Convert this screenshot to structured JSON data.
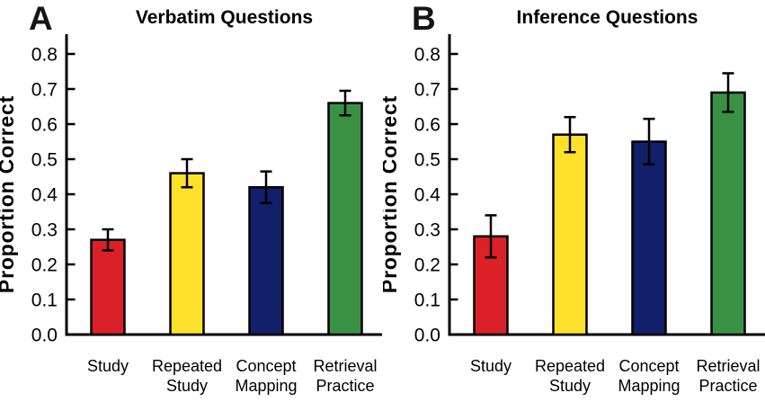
{
  "figure": {
    "background": "#ffffff",
    "text_color": "#000000"
  },
  "chart_data": [
    {
      "type": "bar",
      "panel_letter": "A",
      "title": "Verbatim Questions",
      "xlabel": "",
      "ylabel": "Proportion Correct",
      "categories": [
        "Study",
        "Repeated Study",
        "Concept Mapping",
        "Retrieval Practice"
      ],
      "values": [
        0.27,
        0.46,
        0.42,
        0.66
      ],
      "error_bars": [
        0.03,
        0.04,
        0.045,
        0.035
      ],
      "bar_colors": [
        "#da2128",
        "#ffe12b",
        "#121f6b",
        "#3a9144"
      ],
      "bar_edge_color": "#000000",
      "error_bar_color": "#000000",
      "ylim": [
        0,
        0.85
      ],
      "yticks": [
        0,
        0.1,
        0.2,
        0.3,
        0.4,
        0.5,
        0.6,
        0.7,
        0.8
      ],
      "grid": false,
      "legend": "none"
    },
    {
      "type": "bar",
      "panel_letter": "B",
      "title": "Inference Questions",
      "xlabel": "",
      "ylabel": "Proportion Correct",
      "categories": [
        "Study",
        "Repeated Study",
        "Concept Mapping",
        "Retrieval Practice"
      ],
      "values": [
        0.28,
        0.57,
        0.55,
        0.69
      ],
      "error_bars": [
        0.06,
        0.05,
        0.065,
        0.055
      ],
      "bar_colors": [
        "#da2128",
        "#ffe12b",
        "#121f6b",
        "#3a9144"
      ],
      "bar_edge_color": "#000000",
      "error_bar_color": "#000000",
      "ylim": [
        0,
        0.85
      ],
      "yticks": [
        0,
        0.1,
        0.2,
        0.3,
        0.4,
        0.5,
        0.6,
        0.7,
        0.8
      ],
      "grid": false,
      "legend": "none"
    }
  ]
}
